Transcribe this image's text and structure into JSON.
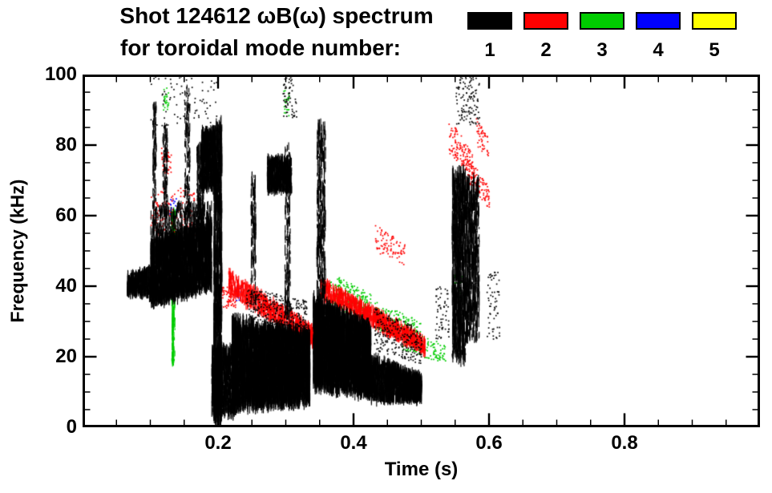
{
  "header": {
    "title_line1": "Shot 124612 ωB(ω) spectrum",
    "title_line2": "for toroidal mode number:"
  },
  "legend": {
    "items": [
      {
        "label": "1",
        "color": "#000000"
      },
      {
        "label": "2",
        "color": "#ff0000"
      },
      {
        "label": "3",
        "color": "#00cc00"
      },
      {
        "label": "4",
        "color": "#0000ff"
      },
      {
        "label": "5",
        "color": "#ffff00"
      }
    ]
  },
  "chart_data": {
    "type": "scatter",
    "title": "Shot 124612 ωB(ω) spectrum for toroidal mode number: 1 2 3 4 5",
    "xlabel": "Time (s)",
    "ylabel": "Frequency (kHz)",
    "xlim": [
      0,
      1
    ],
    "ylim": [
      0,
      100
    ],
    "xticks": [
      0.2,
      0.4,
      0.6,
      0.8
    ],
    "xtick_labels": [
      "0.2",
      "0.4",
      "0.6",
      "0.8"
    ],
    "yticks": [
      0,
      20,
      40,
      60,
      80,
      100
    ],
    "ytick_labels": [
      "0",
      "20",
      "40",
      "60",
      "80",
      "100"
    ],
    "x_minor_step": 0.05,
    "y_minor_step": 5,
    "grid": false,
    "legend_position": "top-right",
    "clusters": [
      {
        "mode": 1,
        "t": [
          0.065,
          0.1
        ],
        "fa": [
          38,
          43
        ],
        "fb": [
          37,
          45
        ],
        "n": 500,
        "s": "v",
        "seg": 3
      },
      {
        "mode": 1,
        "t": [
          0.1,
          0.19
        ],
        "fa": [
          35,
          52
        ],
        "fb": [
          40,
          58
        ],
        "n": 2600,
        "s": "v",
        "seg": 5
      },
      {
        "mode": 1,
        "t": [
          0.1,
          0.19
        ],
        "fa": [
          50,
          62
        ],
        "fb": [
          52,
          64
        ],
        "n": 450,
        "s": "v",
        "seg": 3
      },
      {
        "mode": 1,
        "t": [
          0.103,
          0.108
        ],
        "fa": [
          55,
          92
        ],
        "fb": [
          55,
          92
        ],
        "n": 140,
        "s": "v",
        "seg": 2
      },
      {
        "mode": 1,
        "t": [
          0.118,
          0.125
        ],
        "fa": [
          60,
          86
        ],
        "fb": [
          60,
          86
        ],
        "n": 120,
        "s": "v",
        "seg": 2
      },
      {
        "mode": 1,
        "t": [
          0.15,
          0.158
        ],
        "fa": [
          60,
          97
        ],
        "fb": [
          60,
          97
        ],
        "n": 150,
        "s": "v",
        "seg": 2
      },
      {
        "mode": 1,
        "t": [
          0.168,
          0.178
        ],
        "fa": [
          55,
          80
        ],
        "fb": [
          55,
          80
        ],
        "n": 200,
        "s": "v",
        "seg": 3
      },
      {
        "mode": 1,
        "t": [
          0.175,
          0.195
        ],
        "fa": [
          68,
          84
        ],
        "fb": [
          68,
          84
        ],
        "n": 600,
        "s": "v",
        "seg": 4
      },
      {
        "mode": 1,
        "t": [
          0.193,
          0.205
        ],
        "fa": [
          2,
          86
        ],
        "fb": [
          2,
          86
        ],
        "n": 900,
        "s": "v",
        "seg": 6
      },
      {
        "mode": 1,
        "t": [
          0.19,
          0.225
        ],
        "fa": [
          4,
          22
        ],
        "fb": [
          4,
          22
        ],
        "n": 900,
        "s": "v",
        "seg": 4
      },
      {
        "mode": 1,
        "t": [
          0.22,
          0.335
        ],
        "fa": [
          6,
          30
        ],
        "fb": [
          8,
          26
        ],
        "n": 4000,
        "s": "v",
        "seg": 6
      },
      {
        "mode": 1,
        "t": [
          0.24,
          0.33
        ],
        "fa": [
          30,
          40
        ],
        "fb": [
          28,
          36
        ],
        "n": 300,
        "s": "d"
      },
      {
        "mode": 1,
        "t": [
          0.272,
          0.308
        ],
        "fa": [
          67,
          76
        ],
        "fb": [
          67,
          76
        ],
        "n": 700,
        "s": "v",
        "seg": 3
      },
      {
        "mode": 1,
        "t": [
          0.248,
          0.255
        ],
        "fa": [
          35,
          72
        ],
        "fb": [
          35,
          72
        ],
        "n": 120,
        "s": "v",
        "seg": 3
      },
      {
        "mode": 1,
        "t": [
          0.298,
          0.306
        ],
        "fa": [
          30,
          80
        ],
        "fb": [
          30,
          80
        ],
        "n": 160,
        "s": "v",
        "seg": 3
      },
      {
        "mode": 1,
        "t": [
          0.345,
          0.358
        ],
        "fa": [
          20,
          86
        ],
        "fb": [
          20,
          86
        ],
        "n": 400,
        "s": "v",
        "seg": 4
      },
      {
        "mode": 1,
        "t": [
          0.34,
          0.425
        ],
        "fa": [
          12,
          36
        ],
        "fb": [
          10,
          28
        ],
        "n": 3200,
        "s": "v",
        "seg": 6
      },
      {
        "mode": 1,
        "t": [
          0.425,
          0.5
        ],
        "fa": [
          8,
          20
        ],
        "fb": [
          8,
          14
        ],
        "n": 1400,
        "s": "v",
        "seg": 4
      },
      {
        "mode": 1,
        "t": [
          0.43,
          0.5
        ],
        "fa": [
          22,
          34
        ],
        "fb": [
          18,
          28
        ],
        "n": 250,
        "s": "d"
      },
      {
        "mode": 1,
        "t": [
          0.545,
          0.565
        ],
        "fa": [
          20,
          72
        ],
        "fb": [
          20,
          72
        ],
        "n": 700,
        "s": "v",
        "seg": 6
      },
      {
        "mode": 1,
        "t": [
          0.565,
          0.585
        ],
        "fa": [
          25,
          70
        ],
        "fb": [
          25,
          70
        ],
        "n": 500,
        "s": "v",
        "seg": 5
      },
      {
        "mode": 1,
        "t": [
          0.55,
          0.585
        ],
        "fa": [
          86,
          100
        ],
        "fb": [
          86,
          100
        ],
        "n": 120,
        "s": "d"
      },
      {
        "mode": 1,
        "t": [
          0.1,
          0.2
        ],
        "fa": [
          85,
          100
        ],
        "fb": [
          85,
          100
        ],
        "n": 80,
        "s": "d"
      },
      {
        "mode": 1,
        "t": [
          0.295,
          0.315
        ],
        "fa": [
          88,
          100
        ],
        "fb": [
          88,
          100
        ],
        "n": 60,
        "s": "d"
      },
      {
        "mode": 1,
        "t": [
          0.52,
          0.54
        ],
        "fa": [
          25,
          40
        ],
        "fb": [
          25,
          40
        ],
        "n": 60,
        "s": "d"
      },
      {
        "mode": 1,
        "t": [
          0.595,
          0.615
        ],
        "fa": [
          25,
          45
        ],
        "fb": [
          25,
          45
        ],
        "n": 60,
        "s": "d"
      },
      {
        "mode": 2,
        "t": [
          0.215,
          0.35
        ],
        "fa": [
          38,
          44
        ],
        "fb": [
          22,
          27
        ],
        "n": 700,
        "s": "v",
        "seg": 3
      },
      {
        "mode": 2,
        "t": [
          0.35,
          0.505
        ],
        "fa": [
          37,
          42
        ],
        "fb": [
          21,
          25
        ],
        "n": 800,
        "s": "v",
        "seg": 3
      },
      {
        "mode": 2,
        "t": [
          0.1,
          0.165
        ],
        "fa": [
          52,
          68
        ],
        "fb": [
          52,
          68
        ],
        "n": 180,
        "s": "d"
      },
      {
        "mode": 2,
        "t": [
          0.115,
          0.13
        ],
        "fa": [
          72,
          80
        ],
        "fb": [
          72,
          80
        ],
        "n": 40,
        "s": "d"
      },
      {
        "mode": 2,
        "t": [
          0.54,
          0.575
        ],
        "fa": [
          78,
          88
        ],
        "fb": [
          70,
          78
        ],
        "n": 120,
        "s": "d"
      },
      {
        "mode": 2,
        "t": [
          0.565,
          0.6
        ],
        "fa": [
          70,
          78
        ],
        "fb": [
          62,
          68
        ],
        "n": 120,
        "s": "d"
      },
      {
        "mode": 2,
        "t": [
          0.43,
          0.475
        ],
        "fa": [
          50,
          58
        ],
        "fb": [
          46,
          52
        ],
        "n": 90,
        "s": "d"
      },
      {
        "mode": 2,
        "t": [
          0.2,
          0.225
        ],
        "fa": [
          34,
          40
        ],
        "fb": [
          34,
          40
        ],
        "n": 80,
        "s": "d"
      },
      {
        "mode": 2,
        "t": [
          0.58,
          0.6
        ],
        "fa": [
          80,
          88
        ],
        "fb": [
          76,
          82
        ],
        "n": 50,
        "s": "d"
      },
      {
        "mode": 3,
        "t": [
          0.131,
          0.136
        ],
        "fa": [
          18,
          62
        ],
        "fb": [
          18,
          62
        ],
        "n": 160,
        "s": "v",
        "seg": 4
      },
      {
        "mode": 3,
        "t": [
          0.375,
          0.425
        ],
        "fa": [
          33,
          43
        ],
        "fb": [
          30,
          38
        ],
        "n": 220,
        "s": "d"
      },
      {
        "mode": 3,
        "t": [
          0.43,
          0.5
        ],
        "fa": [
          28,
          36
        ],
        "fb": [
          24,
          30
        ],
        "n": 200,
        "s": "d"
      },
      {
        "mode": 3,
        "t": [
          0.47,
          0.535
        ],
        "fa": [
          22,
          28
        ],
        "fb": [
          18,
          24
        ],
        "n": 120,
        "s": "d"
      },
      {
        "mode": 3,
        "t": [
          0.118,
          0.126
        ],
        "fa": [
          90,
          97
        ],
        "fb": [
          90,
          97
        ],
        "n": 25,
        "s": "d"
      },
      {
        "mode": 3,
        "t": [
          0.296,
          0.304
        ],
        "fa": [
          88,
          96
        ],
        "fb": [
          88,
          96
        ],
        "n": 20,
        "s": "d"
      },
      {
        "mode": 3,
        "t": [
          0.545,
          0.56
        ],
        "fa": [
          36,
          44
        ],
        "fb": [
          36,
          44
        ],
        "n": 40,
        "s": "d"
      },
      {
        "mode": 3,
        "t": [
          0.36,
          0.38
        ],
        "fa": [
          34,
          42
        ],
        "fb": [
          34,
          40
        ],
        "n": 60,
        "s": "d"
      },
      {
        "mode": 4,
        "t": [
          0.128,
          0.138
        ],
        "fa": [
          60,
          65
        ],
        "fb": [
          60,
          65
        ],
        "n": 18,
        "s": "d"
      },
      {
        "mode": 4,
        "t": [
          0.225,
          0.235
        ],
        "fa": [
          36,
          40
        ],
        "fb": [
          36,
          40
        ],
        "n": 12,
        "s": "d"
      },
      {
        "mode": 4,
        "t": [
          0.345,
          0.355
        ],
        "fa": [
          28,
          32
        ],
        "fb": [
          28,
          32
        ],
        "n": 10,
        "s": "d"
      }
    ]
  }
}
